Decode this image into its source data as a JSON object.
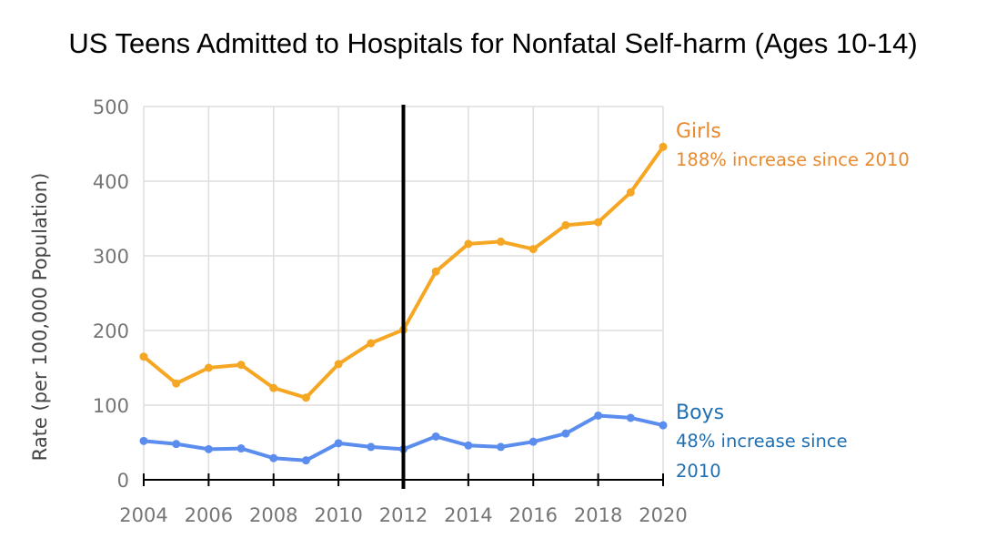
{
  "chart_data": {
    "type": "line",
    "title": "US Teens Admitted to Hospitals for Nonfatal Self-harm (Ages 10-14)",
    "ylabel": "Rate (per 100,000 Population)",
    "xlabel": "",
    "x": [
      2004,
      2005,
      2006,
      2007,
      2008,
      2009,
      2010,
      2011,
      2012,
      2013,
      2014,
      2015,
      2016,
      2017,
      2018,
      2019,
      2020
    ],
    "xticks": [
      "2004",
      "2006",
      "2008",
      "2010",
      "2012",
      "2014",
      "2016",
      "2018",
      "2020"
    ],
    "xlim": [
      2004,
      2020
    ],
    "ylim": [
      0,
      500
    ],
    "yticks": [
      "0",
      "100",
      "200",
      "300",
      "400",
      "500"
    ],
    "grid": true,
    "reference_line_x": 2012,
    "series": [
      {
        "name": "Girls",
        "color": "#f5a623",
        "label_color": "#e8892e",
        "values": [
          165,
          129,
          150,
          154,
          123,
          110,
          155,
          183,
          201,
          279,
          316,
          319,
          309,
          341,
          345,
          385,
          446
        ],
        "annotation": [
          "188% increase since 2010"
        ]
      },
      {
        "name": "Boys",
        "color": "#5b8def",
        "label_color": "#1f6fb2",
        "values": [
          52,
          48,
          41,
          42,
          29,
          26,
          49,
          44,
          41,
          58,
          46,
          44,
          51,
          62,
          86,
          83,
          73
        ],
        "annotation": [
          "48% increase since",
          "2010"
        ]
      }
    ]
  }
}
